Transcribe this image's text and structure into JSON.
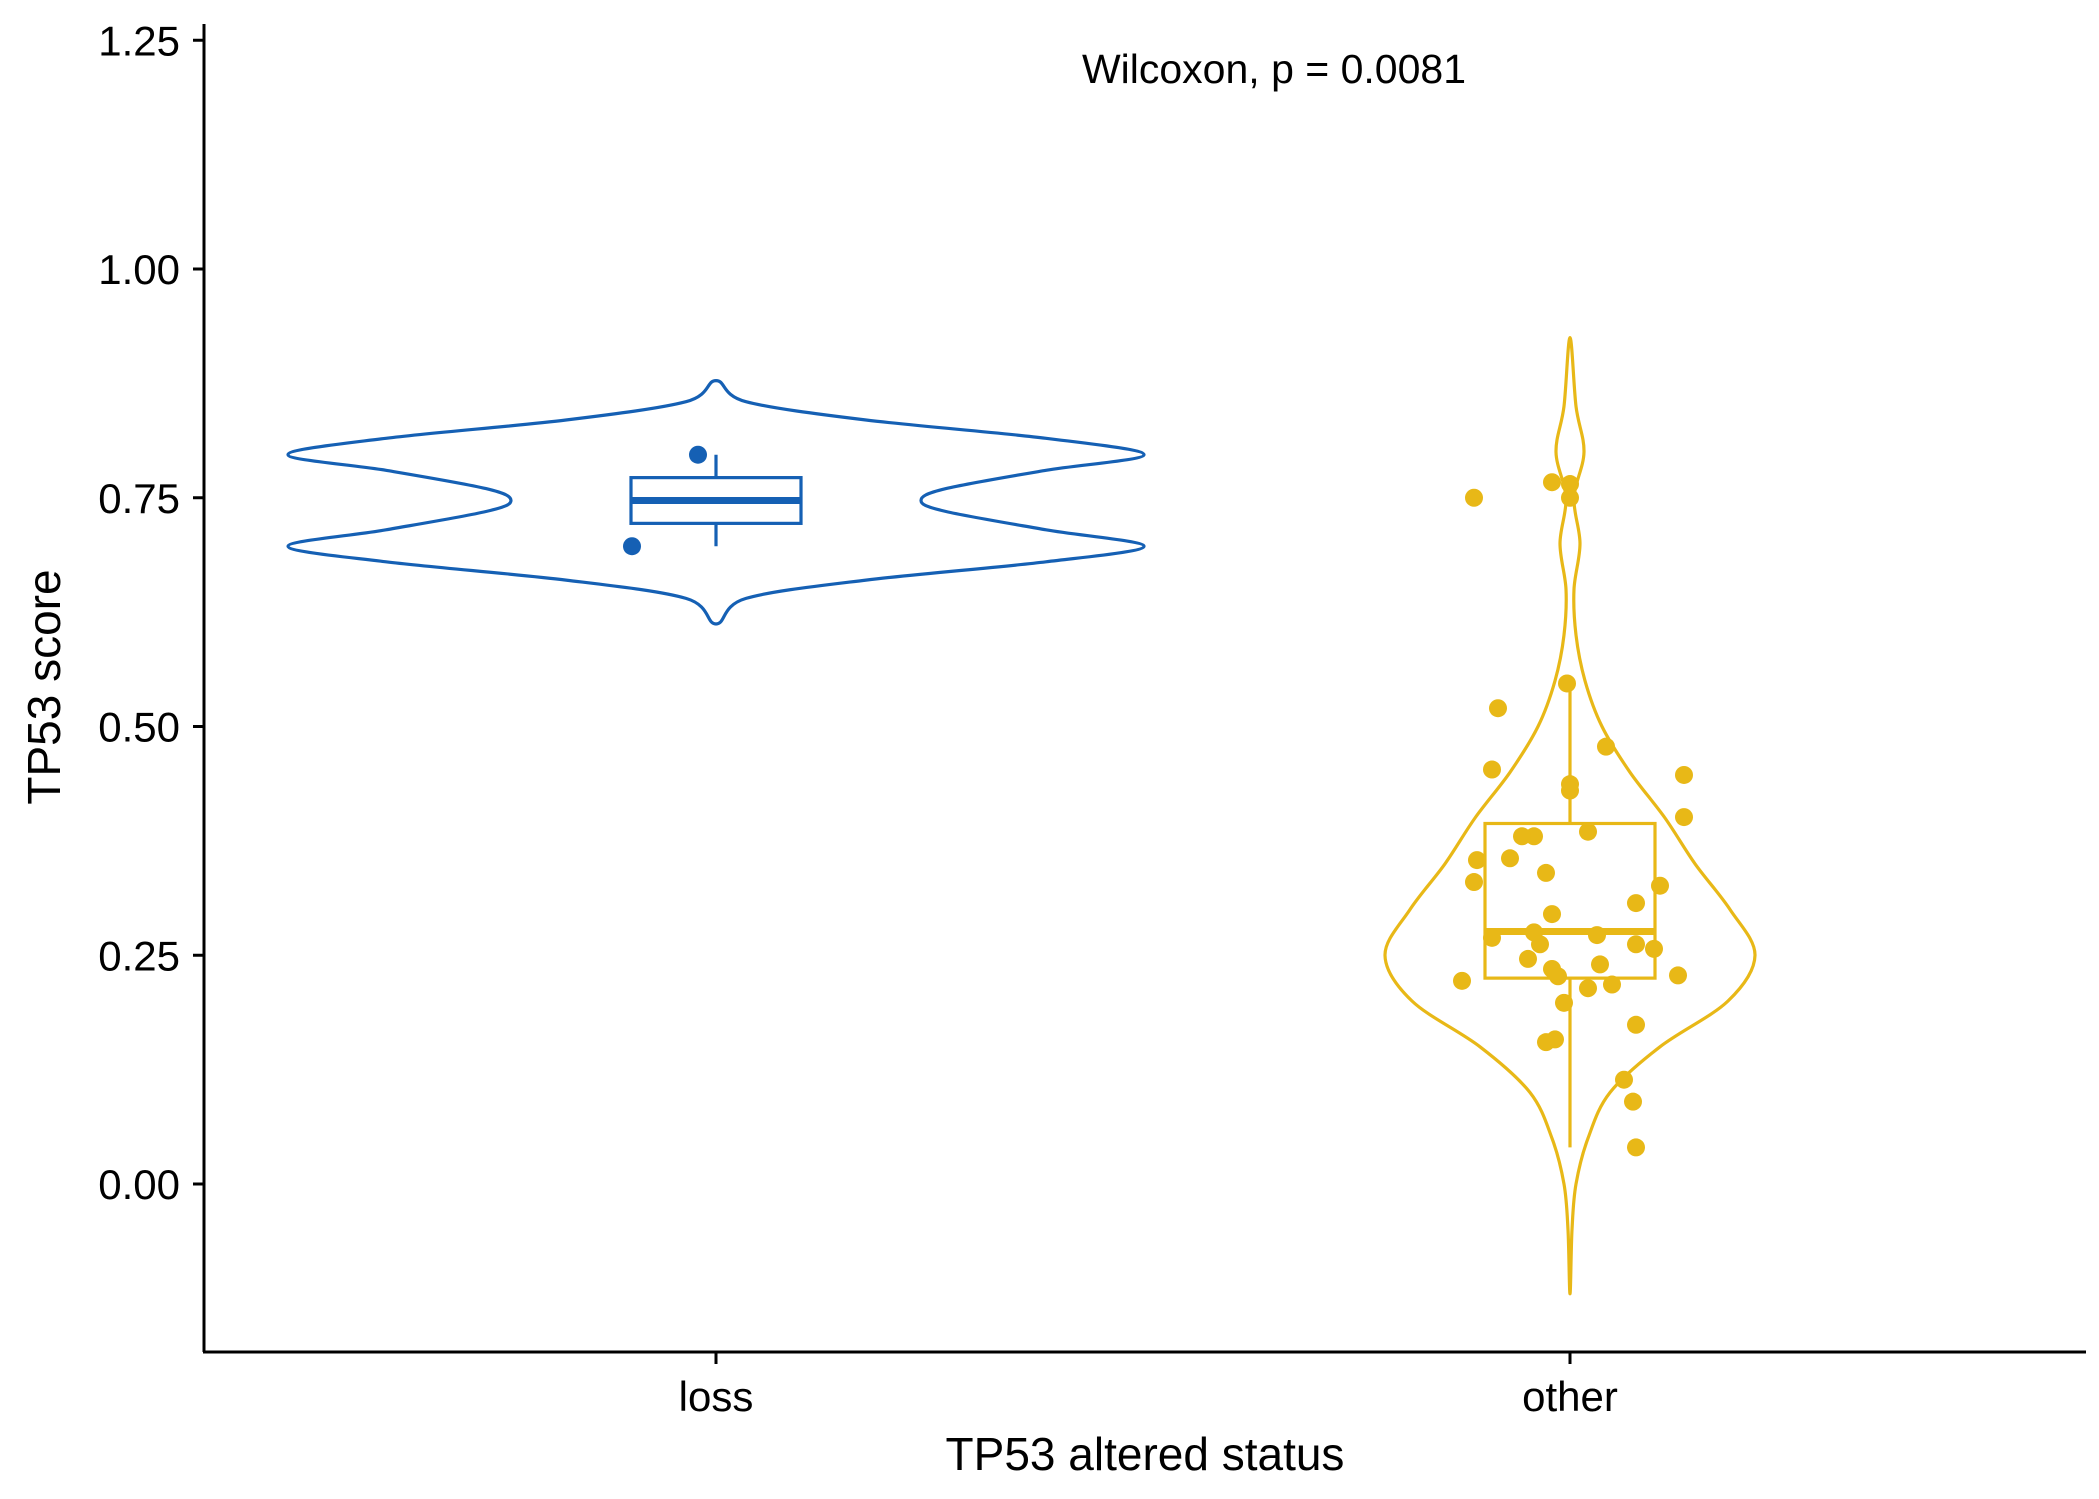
{
  "chart_data": {
    "type": "violin",
    "title": "",
    "xlabel": "TP53 altered status",
    "ylabel": "TP53 score",
    "ylim": [
      -0.2,
      1.27
    ],
    "yticks": [
      0.0,
      0.25,
      0.5,
      0.75,
      1.0,
      1.25
    ],
    "ytick_labels": [
      "0.00",
      "0.25",
      "0.50",
      "0.75",
      "1.00",
      "1.25"
    ],
    "categories": [
      "loss",
      "other"
    ],
    "annotation": "Wilcoxon, p = 0.0081",
    "grid": false,
    "legend": "none",
    "groups": [
      {
        "name": "loss",
        "color": "#1560b4",
        "violin_range": [
          0.612,
          0.878
        ],
        "box": {
          "q1": 0.722,
          "median": 0.747,
          "q3": 0.772,
          "whisker_low": 0.697,
          "whisker_high": 0.797
        },
        "points": [
          {
            "x": -0.14,
            "y": 0.697
          },
          {
            "x": -0.03,
            "y": 0.797
          }
        ]
      },
      {
        "name": "other",
        "color": "#e8b817",
        "violin_range": [
          -0.12,
          0.925
        ],
        "box": {
          "q1": 0.225,
          "median": 0.276,
          "q3": 0.394,
          "whisker_low": 0.04,
          "whisker_high": 0.545
        },
        "points": [
          {
            "x": -0.16,
            "y": 0.75
          },
          {
            "x": -0.03,
            "y": 0.767
          },
          {
            "x": 0.0,
            "y": 0.765
          },
          {
            "x": 0.0,
            "y": 0.75
          },
          {
            "x": -0.12,
            "y": 0.52
          },
          {
            "x": -0.005,
            "y": 0.547
          },
          {
            "x": 0.06,
            "y": 0.478
          },
          {
            "x": -0.13,
            "y": 0.453
          },
          {
            "x": 0.0,
            "y": 0.437
          },
          {
            "x": 0.0,
            "y": 0.43
          },
          {
            "x": 0.19,
            "y": 0.447
          },
          {
            "x": 0.19,
            "y": 0.401
          },
          {
            "x": 0.03,
            "y": 0.385
          },
          {
            "x": -0.06,
            "y": 0.38
          },
          {
            "x": -0.08,
            "y": 0.38
          },
          {
            "x": -0.1,
            "y": 0.356
          },
          {
            "x": -0.155,
            "y": 0.354
          },
          {
            "x": -0.04,
            "y": 0.34
          },
          {
            "x": -0.16,
            "y": 0.33
          },
          {
            "x": 0.15,
            "y": 0.326
          },
          {
            "x": 0.11,
            "y": 0.307
          },
          {
            "x": -0.03,
            "y": 0.295
          },
          {
            "x": -0.06,
            "y": 0.275
          },
          {
            "x": -0.13,
            "y": 0.269
          },
          {
            "x": 0.045,
            "y": 0.272
          },
          {
            "x": -0.05,
            "y": 0.262
          },
          {
            "x": 0.11,
            "y": 0.262
          },
          {
            "x": 0.14,
            "y": 0.257
          },
          {
            "x": -0.07,
            "y": 0.246
          },
          {
            "x": 0.05,
            "y": 0.24
          },
          {
            "x": -0.03,
            "y": 0.235
          },
          {
            "x": -0.02,
            "y": 0.227
          },
          {
            "x": 0.18,
            "y": 0.228
          },
          {
            "x": -0.18,
            "y": 0.222
          },
          {
            "x": 0.07,
            "y": 0.218
          },
          {
            "x": 0.03,
            "y": 0.214
          },
          {
            "x": -0.01,
            "y": 0.198
          },
          {
            "x": 0.11,
            "y": 0.174
          },
          {
            "x": -0.025,
            "y": 0.158
          },
          {
            "x": -0.04,
            "y": 0.155
          },
          {
            "x": 0.09,
            "y": 0.114
          },
          {
            "x": 0.105,
            "y": 0.09
          },
          {
            "x": 0.11,
            "y": 0.04
          }
        ]
      }
    ]
  }
}
